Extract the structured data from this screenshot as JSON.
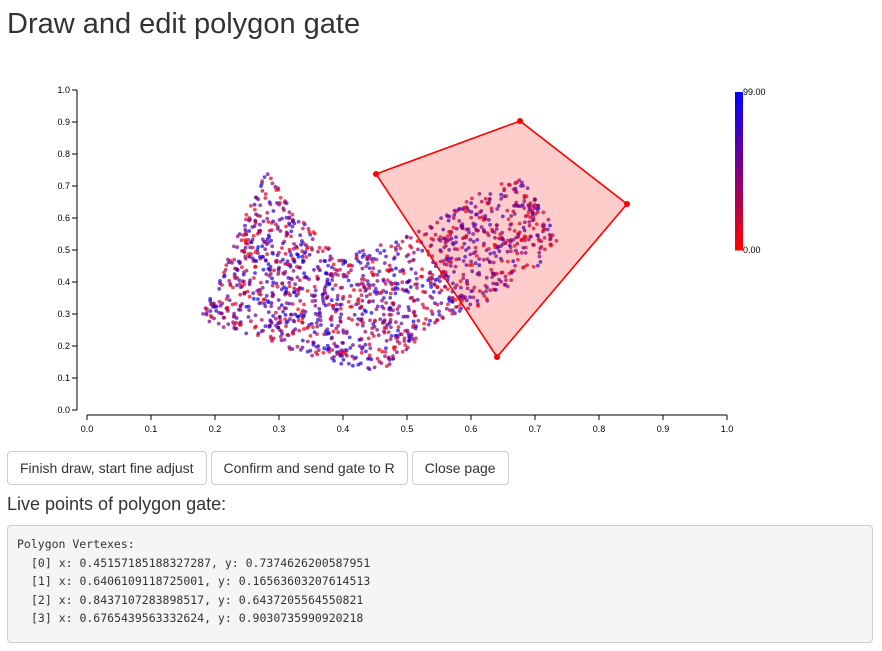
{
  "page": {
    "title": "Draw and edit polygon gate"
  },
  "chart_data": {
    "type": "scatter",
    "xlim": [
      0.0,
      1.0
    ],
    "ylim": [
      0.0,
      1.0
    ],
    "x_ticks": [
      "0.0",
      "0.1",
      "0.2",
      "0.3",
      "0.4",
      "0.5",
      "0.6",
      "0.7",
      "0.8",
      "0.9",
      "1.0"
    ],
    "y_ticks": [
      "0.0",
      "0.1",
      "0.2",
      "0.3",
      "0.4",
      "0.5",
      "0.6",
      "0.7",
      "0.8",
      "0.9",
      "1.0"
    ],
    "grid": false,
    "point_color_low": "#ff0000",
    "point_color_high": "#0000ff",
    "point_cluster": {
      "approx_count": 1500,
      "outline": [
        [
          0.18,
          0.3
        ],
        [
          0.28,
          0.75
        ],
        [
          0.33,
          0.6
        ],
        [
          0.4,
          0.48
        ],
        [
          0.52,
          0.56
        ],
        [
          0.63,
          0.7
        ],
        [
          0.68,
          0.72
        ],
        [
          0.74,
          0.54
        ],
        [
          0.7,
          0.44
        ],
        [
          0.62,
          0.33
        ],
        [
          0.55,
          0.28
        ],
        [
          0.48,
          0.14
        ],
        [
          0.43,
          0.12
        ],
        [
          0.3,
          0.2
        ],
        [
          0.18,
          0.28
        ]
      ]
    },
    "colorbar": {
      "max_label": "99.00",
      "min_label": "0.00",
      "high_color": "#0000ff",
      "low_color": "#ff0000"
    },
    "polygon_gate": {
      "stroke_color": "#ff0000",
      "fill_color": "#ff0000",
      "vertices": [
        [
          0.45157185188327287,
          0.7374626200587951
        ],
        [
          0.6406109118725001,
          0.16563603207614513
        ],
        [
          0.8437107283898517,
          0.6437205564550821
        ],
        [
          0.6765439563332624,
          0.9030735990920218
        ]
      ]
    }
  },
  "buttons": {
    "finish_draw": "Finish draw, start fine adjust",
    "confirm_send": "Confirm and send gate to R",
    "close_page": "Close page"
  },
  "live_points": {
    "heading": "Live points of polygon gate:",
    "console_title": "Polygon Vertexes:",
    "lines": [
      "[0] x: 0.45157185188327287, y: 0.7374626200587951",
      "[1] x: 0.6406109118725001, y: 0.16563603207614513",
      "[2] x: 0.8437107283898517, y: 0.6437205564550821",
      "[3] x: 0.6765439563332624, y: 0.9030735990920218"
    ]
  }
}
